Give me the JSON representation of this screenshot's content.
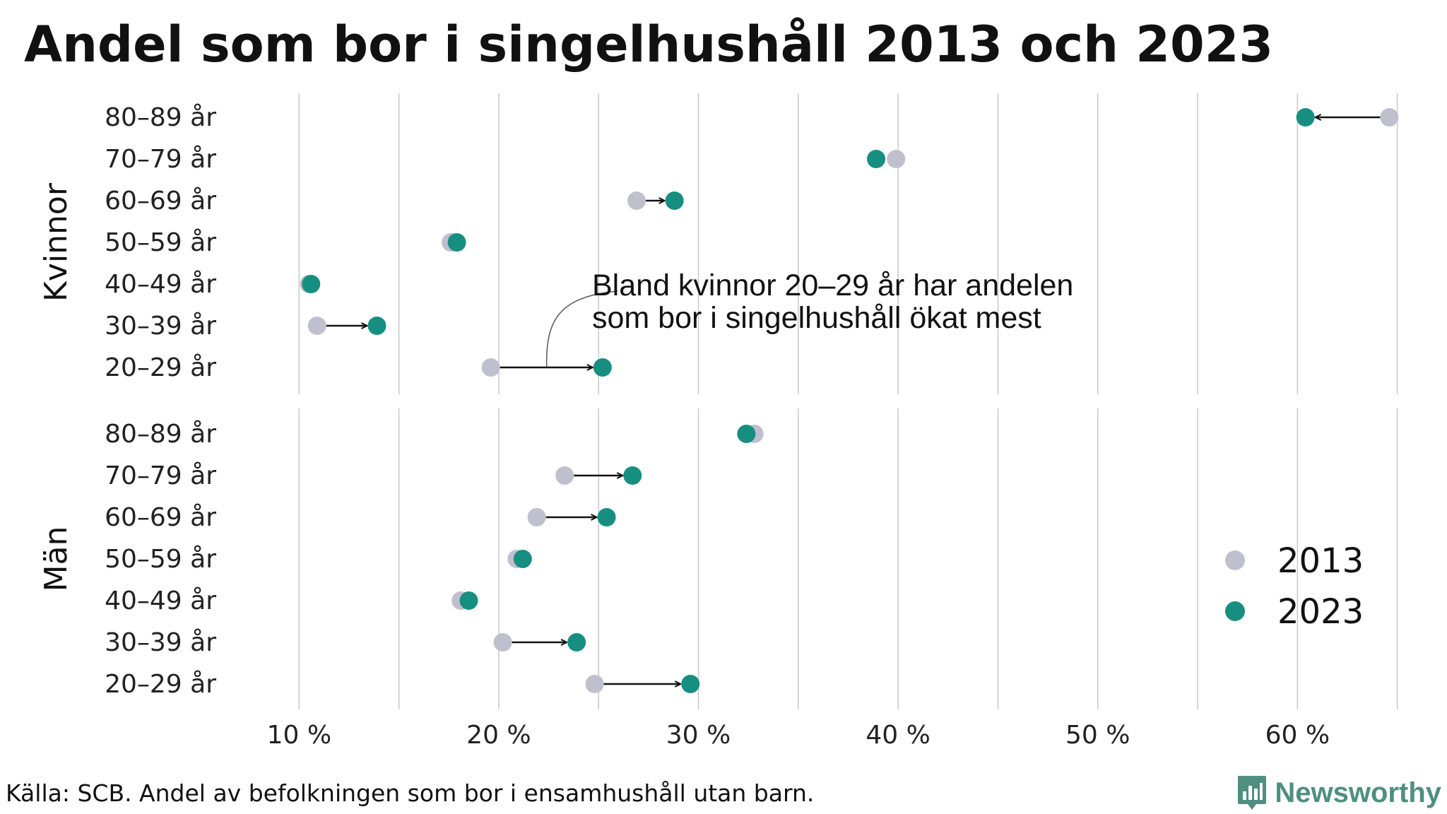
{
  "title": "Andel som bor i singelhushåll 2013 och 2023",
  "source": "Källa: SCB. Andel av befolkningen som bor i ensamhushåll utan barn.",
  "brand": {
    "name": "Newsworthy",
    "color": "#4f8f7f"
  },
  "chart_data": {
    "type": "dumbbell",
    "x_unit": "%",
    "xlim": [
      5,
      64.8
    ],
    "x_ticks": [
      10,
      20,
      30,
      40,
      50,
      60
    ],
    "x_tick_labels": [
      "10 %",
      "20 %",
      "30 %",
      "40 %",
      "50 %",
      "60 %"
    ],
    "minor_gridlines": [
      15,
      25,
      35,
      45,
      55,
      65
    ],
    "grid": true,
    "legend": {
      "position": "right",
      "entries": [
        {
          "label": "2013",
          "color": "#c0bfce"
        },
        {
          "label": "2023",
          "color": "#168f80"
        }
      ]
    },
    "colors": {
      "y2013": "#c0bfce",
      "y2023": "#168f80",
      "arrow": "#111111",
      "grid": "#c8c8c8"
    },
    "annotation": {
      "lines": [
        "Bland kvinnor 20–29 år har andelen",
        "som bor i singelhushåll ökat mest"
      ],
      "panel": "Kvinnor",
      "target_category": "20–29 år"
    },
    "panels": [
      {
        "label": "Kvinnor",
        "categories": [
          "80–89 år",
          "70–79 år",
          "60–69 år",
          "50–59 år",
          "40–49 år",
          "30–39 år",
          "20–29 år"
        ],
        "y2013": [
          64.6,
          39.9,
          26.9,
          17.6,
          10.5,
          10.9,
          19.6
        ],
        "y2023": [
          60.4,
          38.9,
          28.8,
          17.9,
          10.6,
          13.9,
          25.2
        ]
      },
      {
        "label": "Män",
        "categories": [
          "80–89 år",
          "70–79 år",
          "60–69 år",
          "50–59 år",
          "40–49 år",
          "30–39 år",
          "20–29 år"
        ],
        "y2013": [
          32.8,
          23.3,
          21.9,
          20.9,
          18.1,
          20.2,
          24.8
        ],
        "y2023": [
          32.4,
          26.7,
          25.4,
          21.2,
          18.5,
          23.9,
          29.6
        ]
      }
    ]
  }
}
